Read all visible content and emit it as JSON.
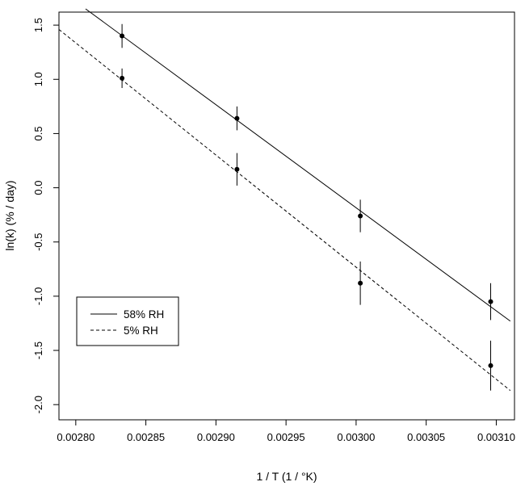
{
  "chart_data": {
    "type": "scatter",
    "xlabel": "1 / T (1 / °K)",
    "ylabel": "ln(k) (% / day)",
    "xlim": [
      0.002788,
      0.003113
    ],
    "ylim": [
      -2.14,
      1.62
    ],
    "x_ticks": [
      0.0028,
      0.00285,
      0.0029,
      0.00295,
      0.003,
      0.00305,
      0.0031
    ],
    "x_tick_labels": [
      "0.00280",
      "0.00285",
      "0.00290",
      "0.00295",
      "0.00300",
      "0.00305",
      "0.00310"
    ],
    "y_ticks": [
      1.5,
      1.0,
      0.5,
      0.0,
      -0.5,
      -1.0,
      -1.5,
      -2.0
    ],
    "y_tick_labels": [
      "1.5",
      "1.0",
      "0.5",
      "0.0",
      "-0.5",
      "-1.0",
      "-1.5",
      "-2.0"
    ],
    "grid": false,
    "legend_position": "bottom-left",
    "series": [
      {
        "name": "58% RH",
        "line_style": "solid",
        "color": "#000000",
        "points": [
          {
            "x": 0.002833,
            "y": 1.4,
            "err": 0.11
          },
          {
            "x": 0.002915,
            "y": 0.64,
            "err": 0.11
          },
          {
            "x": 0.003003,
            "y": -0.26,
            "err": 0.15
          },
          {
            "x": 0.003096,
            "y": -1.05,
            "err": 0.17
          }
        ],
        "fit_line": [
          [
            0.002807,
            1.65
          ],
          [
            0.00311,
            -1.23
          ]
        ]
      },
      {
        "name": "5% RH",
        "line_style": "dashed",
        "color": "#000000",
        "points": [
          {
            "x": 0.002833,
            "y": 1.01,
            "err": 0.09
          },
          {
            "x": 0.002915,
            "y": 0.17,
            "err": 0.15
          },
          {
            "x": 0.003003,
            "y": -0.88,
            "err": 0.2
          },
          {
            "x": 0.003096,
            "y": -1.64,
            "err": 0.23
          }
        ],
        "fit_line": [
          [
            0.002788,
            1.46
          ],
          [
            0.00311,
            -1.87
          ]
        ]
      }
    ]
  }
}
